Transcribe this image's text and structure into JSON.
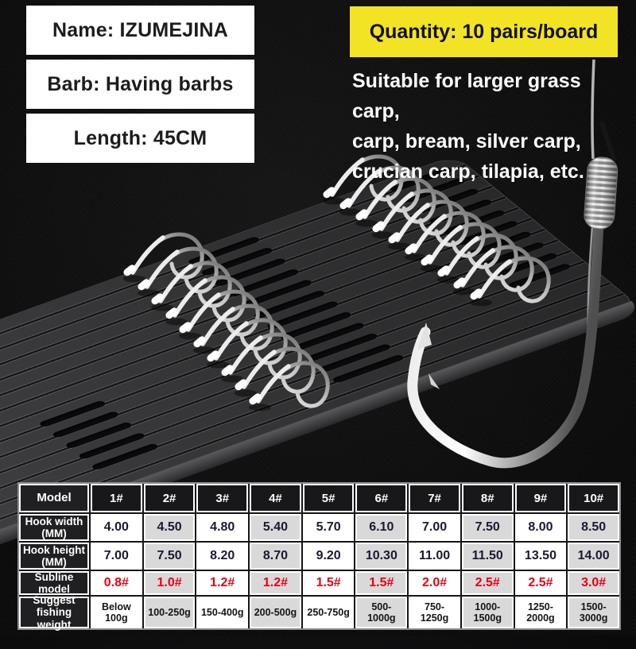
{
  "info_boxes": [
    "Name: IZUMEJINA",
    "Barb: Having barbs",
    "Length: 45CM"
  ],
  "quantity_badge": "Quantity: 10 pairs/board",
  "description_lines": [
    "Suitable for larger grass carp,",
    "carp, bream, silver carp,",
    "crucian carp, tilapia, etc."
  ],
  "colors": {
    "badge_yellow": "#f3e325",
    "subline_red": "#e60012",
    "value_navy": "#191933",
    "label_black": "#202023",
    "shade_gray": "#d9d9d9"
  },
  "table": {
    "header_label": "Model",
    "header_cols": [
      "1#",
      "2#",
      "3#",
      "4#",
      "5#",
      "6#",
      "7#",
      "8#",
      "9#",
      "10#"
    ],
    "rows": [
      {
        "label": "Hook width (MM)",
        "label_lines": [
          "Hook width",
          "(MM)"
        ],
        "style": "val",
        "values": [
          "4.00",
          "4.50",
          "4.80",
          "5.40",
          "5.70",
          "6.10",
          "7.00",
          "7.50",
          "8.00",
          "8.50"
        ]
      },
      {
        "label": "Hook height (MM)",
        "label_lines": [
          "Hook height",
          "(MM)"
        ],
        "style": "val",
        "values": [
          "7.00",
          "7.50",
          "8.20",
          "8.70",
          "9.20",
          "10.30",
          "11.00",
          "11.50",
          "13.50",
          "14.00"
        ]
      },
      {
        "label": "Subline model",
        "label_lines": [
          "Subline model"
        ],
        "style": "red",
        "values": [
          "0.8#",
          "1.0#",
          "1.2#",
          "1.2#",
          "1.5#",
          "1.5#",
          "2.0#",
          "2.5#",
          "2.5#",
          "3.0#"
        ]
      },
      {
        "label": "Suggest fishing weight",
        "label_lines": [
          "Suggest fishing",
          "weight"
        ],
        "style": "wt",
        "values": [
          "Below 100g",
          "100-250g",
          "150-400g",
          "200-500g",
          "250-750g",
          "500-1000g",
          "750-1250g",
          "1000-1500g",
          "1250-2000g",
          "1500-3000g"
        ]
      }
    ]
  }
}
